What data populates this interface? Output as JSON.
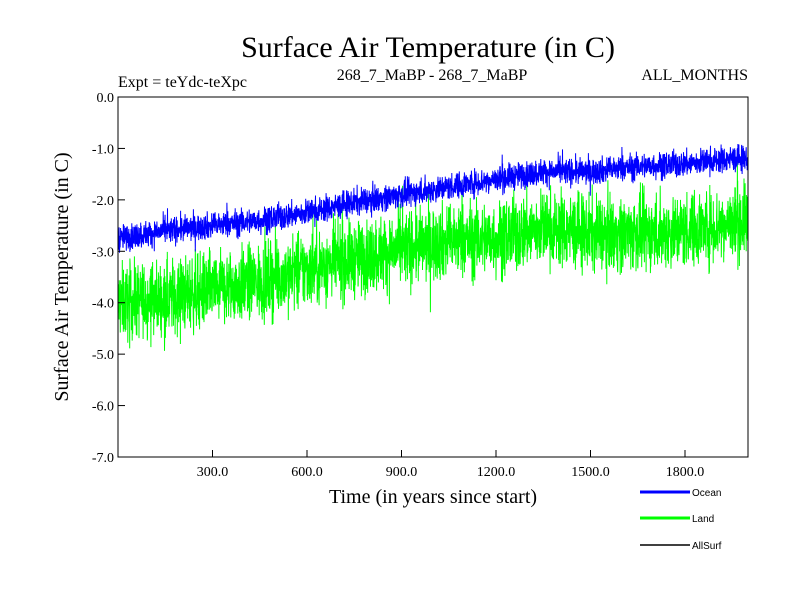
{
  "chart_data": {
    "type": "line",
    "title": "Surface Air Temperature (in C)",
    "subtitle_left": "Expt = teYdc-teXpc",
    "subtitle_center": "268_7_MaBP - 268_7_MaBP",
    "subtitle_right": "ALL_MONTHS",
    "xlabel": "Time (in years since start)",
    "ylabel": "Surface Air Temperature (in C)",
    "xlim": [
      0,
      2000
    ],
    "ylim": [
      -7.0,
      0.0
    ],
    "x_ticks": [
      300,
      600,
      900,
      1200,
      1500,
      1800
    ],
    "x_tick_labels": [
      "300.0",
      "600.0",
      "900.0",
      "1200.0",
      "1500.0",
      "1800.0"
    ],
    "y_ticks": [
      0,
      -1,
      -2,
      -3,
      -4,
      -5,
      -6,
      -7
    ],
    "y_tick_labels": [
      "0.0",
      "-1.0",
      "-2.0",
      "-3.0",
      "-4.0",
      "-5.0",
      "-6.0",
      "-7.0"
    ],
    "series": [
      {
        "name": "Land",
        "color": "#00ff00",
        "trend_x": [
          0,
          150,
          300,
          450,
          600,
          750,
          900,
          1050,
          1200,
          1350,
          1500,
          1650,
          1800,
          1950,
          2000
        ],
        "trend_y": [
          -4.0,
          -3.9,
          -3.75,
          -3.6,
          -3.35,
          -3.15,
          -2.95,
          -2.8,
          -2.75,
          -2.55,
          -2.65,
          -2.65,
          -2.6,
          -2.45,
          -2.4
        ],
        "spread": 0.85
      },
      {
        "name": "Ocean",
        "color": "#0000ff",
        "trend_x": [
          0,
          150,
          300,
          450,
          600,
          750,
          900,
          1050,
          1200,
          1350,
          1500,
          1650,
          1800,
          1950,
          2000
        ],
        "trend_y": [
          -2.75,
          -2.6,
          -2.5,
          -2.4,
          -2.25,
          -2.05,
          -1.9,
          -1.75,
          -1.6,
          -1.45,
          -1.45,
          -1.35,
          -1.3,
          -1.2,
          -1.2
        ],
        "spread": 0.3
      },
      {
        "name": "AllSurf",
        "color": "#000000",
        "trend_x": [],
        "trend_y": [],
        "spread": 0
      }
    ],
    "legend": [
      "Ocean",
      "Land",
      "AllSurf"
    ]
  }
}
